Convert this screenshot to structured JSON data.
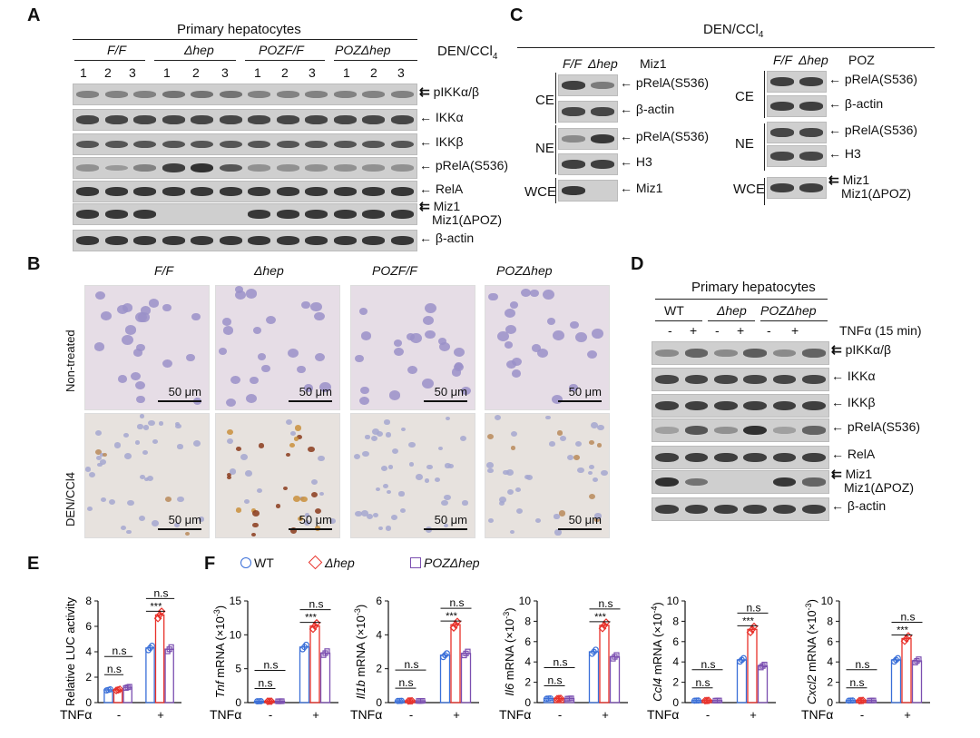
{
  "panel_labels": {
    "a": "A",
    "b": "B",
    "c": "C",
    "d": "D",
    "e": "E",
    "f": "F"
  },
  "panel_a": {
    "header": "Primary hepatocytes",
    "groups": [
      "F/F",
      "Δhep",
      "POZF/F",
      "POZΔhep"
    ],
    "lanes": [
      "1",
      "2",
      "3",
      "1",
      "2",
      "3",
      "1",
      "2",
      "3",
      "1",
      "2",
      "3"
    ],
    "treatment": "DEN/CCl",
    "treatment_sub": "4",
    "rows": [
      "pIKKα/β",
      "IKKα",
      "IKKβ",
      "pRelA(S536)",
      "RelA",
      "Miz1",
      "Miz1(ΔPOZ)",
      "β-actin"
    ]
  },
  "panel_c": {
    "header": "DEN/CCl",
    "header_sub": "4",
    "left_groups": [
      "F/F",
      "Δhep"
    ],
    "left_title": "Miz1",
    "right_groups": [
      "F/F",
      "Δhep"
    ],
    "right_title": "POZ",
    "fractions": [
      "CE",
      "NE",
      "WCE"
    ],
    "left_rows": [
      "pRelA(S536)",
      "β-actin",
      "pRelA(S536)",
      "H3",
      "Miz1"
    ],
    "right_rows": [
      "pRelA(S536)",
      "β-actin",
      "pRelA(S536)",
      "H3",
      "Miz1",
      "Miz1(ΔPOZ)"
    ]
  },
  "panel_b": {
    "columns": [
      "F/F",
      "Δhep",
      "POZF/F",
      "POZΔhep"
    ],
    "rows": [
      "Non-treated",
      "DEN/CCl4"
    ],
    "scale": "50 μm"
  },
  "panel_d": {
    "header": "Primary hepatocytes",
    "groups": [
      "WT",
      "Δhep",
      "POZΔhep"
    ],
    "treat_signs": [
      "-",
      "+",
      "-",
      "+",
      "-",
      "+"
    ],
    "treat_label": "TNFα (15 min)",
    "rows": [
      "pIKKα/β",
      "IKKα",
      "IKKβ",
      "pRelA(S536)",
      "RelA",
      "Miz1",
      "Miz1(ΔPOZ)",
      "β-actin"
    ]
  },
  "legend": {
    "wt": "WT",
    "hep": "Δhep",
    "poz": "POZΔhep"
  },
  "colors": {
    "wt": "#3a6fd8",
    "hep": "#e8312a",
    "poz": "#7b4fb0"
  },
  "tnf_label": "TNFα",
  "chart_data": [
    {
      "type": "bar",
      "id": "E",
      "ylabel": "Relative LUC activity",
      "ylim": [
        0,
        8
      ],
      "yticks": [
        0,
        2,
        4,
        6,
        8
      ],
      "groups": [
        "-",
        "+"
      ],
      "series": [
        {
          "name": "WT",
          "values": [
            1.0,
            4.3
          ]
        },
        {
          "name": "Δhep",
          "values": [
            1.0,
            6.9
          ]
        },
        {
          "name": "POZΔhep",
          "values": [
            1.2,
            4.2
          ]
        }
      ],
      "annotations": [
        "n.s",
        "n.s",
        "***",
        "n.s"
      ]
    },
    {
      "type": "bar",
      "id": "Tnf",
      "ylabel_gene": "Tnf",
      "ylabel_rest": " mRNA (×10",
      "ylabel_exp": "-3",
      "ylim": [
        0,
        15
      ],
      "yticks": [
        0,
        5,
        10,
        15
      ],
      "groups": [
        "-",
        "+"
      ],
      "series": [
        {
          "name": "WT",
          "values": [
            0.2,
            8.2
          ]
        },
        {
          "name": "Δhep",
          "values": [
            0.2,
            11.3
          ]
        },
        {
          "name": "POZΔhep",
          "values": [
            0.2,
            7.3
          ]
        }
      ],
      "annotations": [
        "n.s",
        "n.s",
        "***",
        "n.s"
      ]
    },
    {
      "type": "bar",
      "id": "Il1b",
      "ylabel_gene": "Il1b",
      "ylabel_rest": " mRNA (×10",
      "ylabel_exp": "-3",
      "ylim": [
        0,
        6
      ],
      "yticks": [
        0,
        2,
        4,
        6
      ],
      "groups": [
        "-",
        "+"
      ],
      "series": [
        {
          "name": "WT",
          "values": [
            0.1,
            2.8
          ]
        },
        {
          "name": "Δhep",
          "values": [
            0.1,
            4.6
          ]
        },
        {
          "name": "POZΔhep",
          "values": [
            0.1,
            2.9
          ]
        }
      ],
      "annotations": [
        "n.s",
        "n.s",
        "***",
        "n.s"
      ]
    },
    {
      "type": "bar",
      "id": "Il6",
      "ylabel_gene": "Il6",
      "ylabel_rest": " mRNA (×10",
      "ylabel_exp": "-3",
      "ylim": [
        0,
        10
      ],
      "yticks": [
        0,
        2,
        4,
        6,
        8,
        10
      ],
      "groups": [
        "-",
        "+"
      ],
      "series": [
        {
          "name": "WT",
          "values": [
            0.4,
            5.0
          ]
        },
        {
          "name": "Δhep",
          "values": [
            0.4,
            7.6
          ]
        },
        {
          "name": "POZΔhep",
          "values": [
            0.4,
            4.5
          ]
        }
      ],
      "annotations": [
        "n.s",
        "n.s",
        "***",
        "n.s"
      ]
    },
    {
      "type": "bar",
      "id": "Ccl4",
      "ylabel_gene": "Ccl4",
      "ylabel_rest": " mRNA (×10",
      "ylabel_exp": "-4",
      "ylim": [
        0,
        10
      ],
      "yticks": [
        0,
        2,
        4,
        6,
        8,
        10
      ],
      "groups": [
        "-",
        "+"
      ],
      "series": [
        {
          "name": "WT",
          "values": [
            0.2,
            4.2
          ]
        },
        {
          "name": "Δhep",
          "values": [
            0.2,
            7.2
          ]
        },
        {
          "name": "POZΔhep",
          "values": [
            0.2,
            3.6
          ]
        }
      ],
      "annotations": [
        "n.s",
        "n.s",
        "***",
        "n.s"
      ]
    },
    {
      "type": "bar",
      "id": "Cxcl2",
      "ylabel_gene": "Cxcl2",
      "ylabel_rest": " mRNA (×10",
      "ylabel_exp": "-3",
      "ylim": [
        0,
        10
      ],
      "yticks": [
        0,
        2,
        4,
        6,
        8,
        10
      ],
      "groups": [
        "-",
        "+"
      ],
      "series": [
        {
          "name": "WT",
          "values": [
            0.2,
            4.2
          ]
        },
        {
          "name": "Δhep",
          "values": [
            0.2,
            6.3
          ]
        },
        {
          "name": "POZΔhep",
          "values": [
            0.2,
            4.1
          ]
        }
      ],
      "annotations": [
        "n.s",
        "n.s",
        "***",
        "n.s"
      ]
    }
  ]
}
